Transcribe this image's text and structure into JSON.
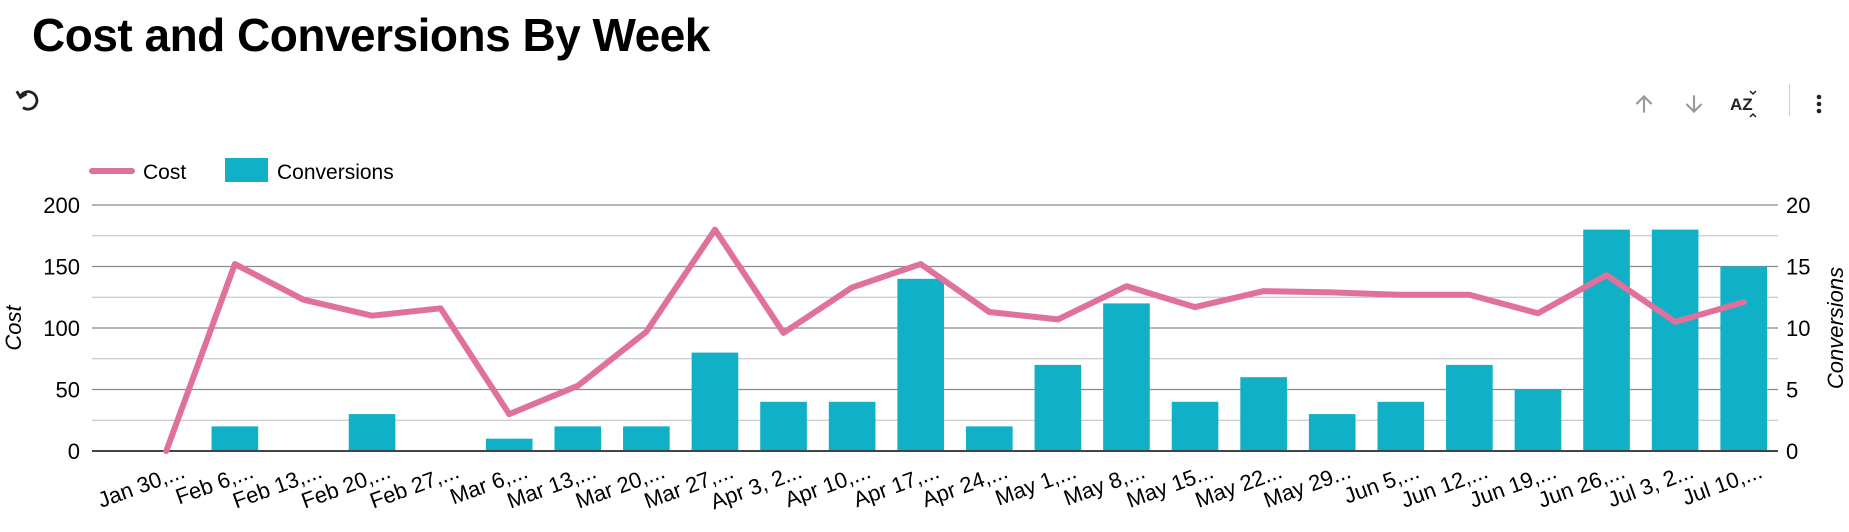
{
  "title": "Cost and Conversions By Week",
  "toolbar": {
    "icons": [
      "undo-icon",
      "arrow-up-icon",
      "arrow-down-icon",
      "sort-az-icon",
      "more-vert-icon"
    ],
    "az_label": "AZ"
  },
  "colors": {
    "cost": "#e0709c",
    "conversions": "#10b0c6",
    "grid": "#8a8a8a"
  },
  "chart_data": {
    "type": "bar",
    "title": "Cost and Conversions By Week",
    "categories": [
      "Jan 30,...",
      "Feb 6,...",
      "Feb 13,...",
      "Feb 20,...",
      "Feb 27,...",
      "Mar 6,...",
      "Mar 13,...",
      "Mar 20,...",
      "Mar 27,...",
      "Apr 3, 2...",
      "Apr 10,...",
      "Apr 17,...",
      "Apr 24,...",
      "May 1,...",
      "May 8,...",
      "May 15...",
      "May 22...",
      "May 29...",
      "Jun 5,...",
      "Jun 12,...",
      "Jun 19,...",
      "Jun 26,...",
      "Jul 3, 2...",
      "Jul 10,..."
    ],
    "series": [
      {
        "name": "Cost",
        "type": "line",
        "axis": "left",
        "values": [
          0,
          152,
          123,
          110,
          116,
          30,
          53,
          97,
          180,
          96,
          133,
          152,
          113,
          107,
          134,
          117,
          130,
          129,
          127,
          127,
          112,
          143,
          105,
          121
        ]
      },
      {
        "name": "Conversions",
        "type": "bar",
        "axis": "right",
        "values": [
          0,
          2,
          0,
          3,
          0,
          1,
          2,
          2,
          8,
          4,
          4,
          14,
          2,
          7,
          12,
          4,
          6,
          3,
          4,
          7,
          5,
          18,
          18,
          15
        ]
      }
    ],
    "y_left": {
      "label": "Cost",
      "min": 0,
      "max": 200,
      "ticks": [
        0,
        50,
        100,
        150,
        200
      ]
    },
    "y_right": {
      "label": "Conversions",
      "min": 0,
      "max": 20,
      "ticks": [
        0,
        5,
        10,
        15,
        20
      ]
    },
    "xlabel": "",
    "legend_position": "top-left",
    "grid": true
  }
}
